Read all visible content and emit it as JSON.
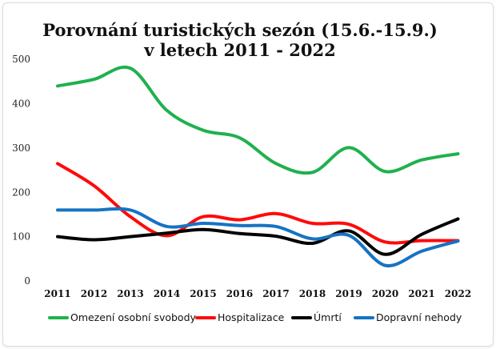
{
  "chart_data": {
    "type": "line",
    "title_line1": "Porovnání turistických sezón (15.6.-15.9.)",
    "title_line2": "v letech 2011 - 2022",
    "xlabel": "",
    "ylabel": "",
    "ylim": [
      0,
      500
    ],
    "yticks": [
      "0",
      "100",
      "200",
      "300",
      "400",
      "500"
    ],
    "grid": false,
    "legend_position": "bottom",
    "categories": [
      "2011",
      "2012",
      "2013",
      "2014",
      "2015",
      "2016",
      "2017",
      "2018",
      "2019",
      "2020",
      "2021",
      "2022"
    ],
    "series": [
      {
        "name": "Omezení osobní svobody",
        "color": "#1fb14e",
        "values": [
          440,
          455,
          480,
          385,
          340,
          323,
          265,
          245,
          301,
          247,
          273,
          287
        ]
      },
      {
        "name": "Hospitalizace",
        "color": "#ff0a0a",
        "values": [
          265,
          215,
          145,
          102,
          145,
          138,
          152,
          130,
          128,
          88,
          91,
          91
        ]
      },
      {
        "name": "Úmrtí",
        "color": "#000000",
        "values": [
          100,
          93,
          100,
          108,
          116,
          107,
          101,
          85,
          113,
          60,
          105,
          140
        ]
      },
      {
        "name": "Dopravní nehody",
        "color": "#1673c3",
        "values": [
          160,
          160,
          160,
          123,
          130,
          125,
          123,
          95,
          103,
          35,
          67,
          90
        ]
      }
    ]
  }
}
